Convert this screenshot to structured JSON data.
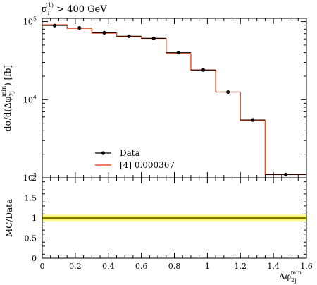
{
  "chart_data": {
    "type": "step-histogram",
    "title": {
      "pt": "p",
      "pt_sub": "T",
      "pt_sup": "(1)",
      "rest": " > 400 GeV"
    },
    "ylabel": {
      "main": "dσ/d(Δφ",
      "sub": "2j",
      "sup": "min",
      "end": ") [fb]"
    },
    "xlabel": {
      "main": "Δφ",
      "sub": "2j",
      "sup": "min"
    },
    "ratio_ylabel": "MC/Data",
    "x_range": [
      0,
      1.6
    ],
    "y_range": [
      1000,
      110000
    ],
    "y_scale": "log",
    "ratio_range": [
      0,
      2
    ],
    "x_ticks": [
      {
        "v": 0,
        "label": "0"
      },
      {
        "v": 0.2,
        "label": "0.2"
      },
      {
        "v": 0.4,
        "label": "0.4"
      },
      {
        "v": 0.6,
        "label": "0.6"
      },
      {
        "v": 0.8,
        "label": "0.8"
      },
      {
        "v": 1.0,
        "label": "1"
      },
      {
        "v": 1.2,
        "label": "1.2"
      },
      {
        "v": 1.4,
        "label": "1.4"
      },
      {
        "v": 1.6,
        "label": "1.6"
      }
    ],
    "y_ticks": [
      {
        "v": 1000,
        "base": "10",
        "exp": "3"
      },
      {
        "v": 10000,
        "base": "10",
        "exp": "4"
      },
      {
        "v": 100000,
        "base": "10",
        "exp": "5"
      }
    ],
    "ratio_ticks": [
      {
        "v": 0,
        "label": "0"
      },
      {
        "v": 0.5,
        "label": "0.5"
      },
      {
        "v": 1,
        "label": "1"
      },
      {
        "v": 1.5,
        "label": "1.5"
      },
      {
        "v": 2,
        "label": "2"
      }
    ],
    "bin_edges": [
      0,
      0.15,
      0.3,
      0.45,
      0.6,
      0.75,
      0.9,
      1.05,
      1.2,
      1.35,
      1.6
    ],
    "series": [
      {
        "name": "Data",
        "type": "points",
        "color": "#000000",
        "x": [
          0.075,
          0.225,
          0.375,
          0.525,
          0.675,
          0.825,
          0.975,
          1.125,
          1.275,
          1.475
        ],
        "y": [
          89000,
          83000,
          72000,
          65000,
          61000,
          40000,
          24000,
          12500,
          5500,
          1100
        ]
      },
      {
        "name": "[4] 0.000367",
        "type": "step",
        "color": "#e8522c",
        "y": [
          91000,
          82000,
          71000,
          64000,
          61000,
          39000,
          24000,
          12500,
          5400,
          1100
        ]
      }
    ],
    "ratio_band": {
      "color": "#f4f400",
      "inner": [
        0.96,
        1.04
      ],
      "outer": [
        0.92,
        1.08
      ]
    },
    "ratio_line": 1
  }
}
